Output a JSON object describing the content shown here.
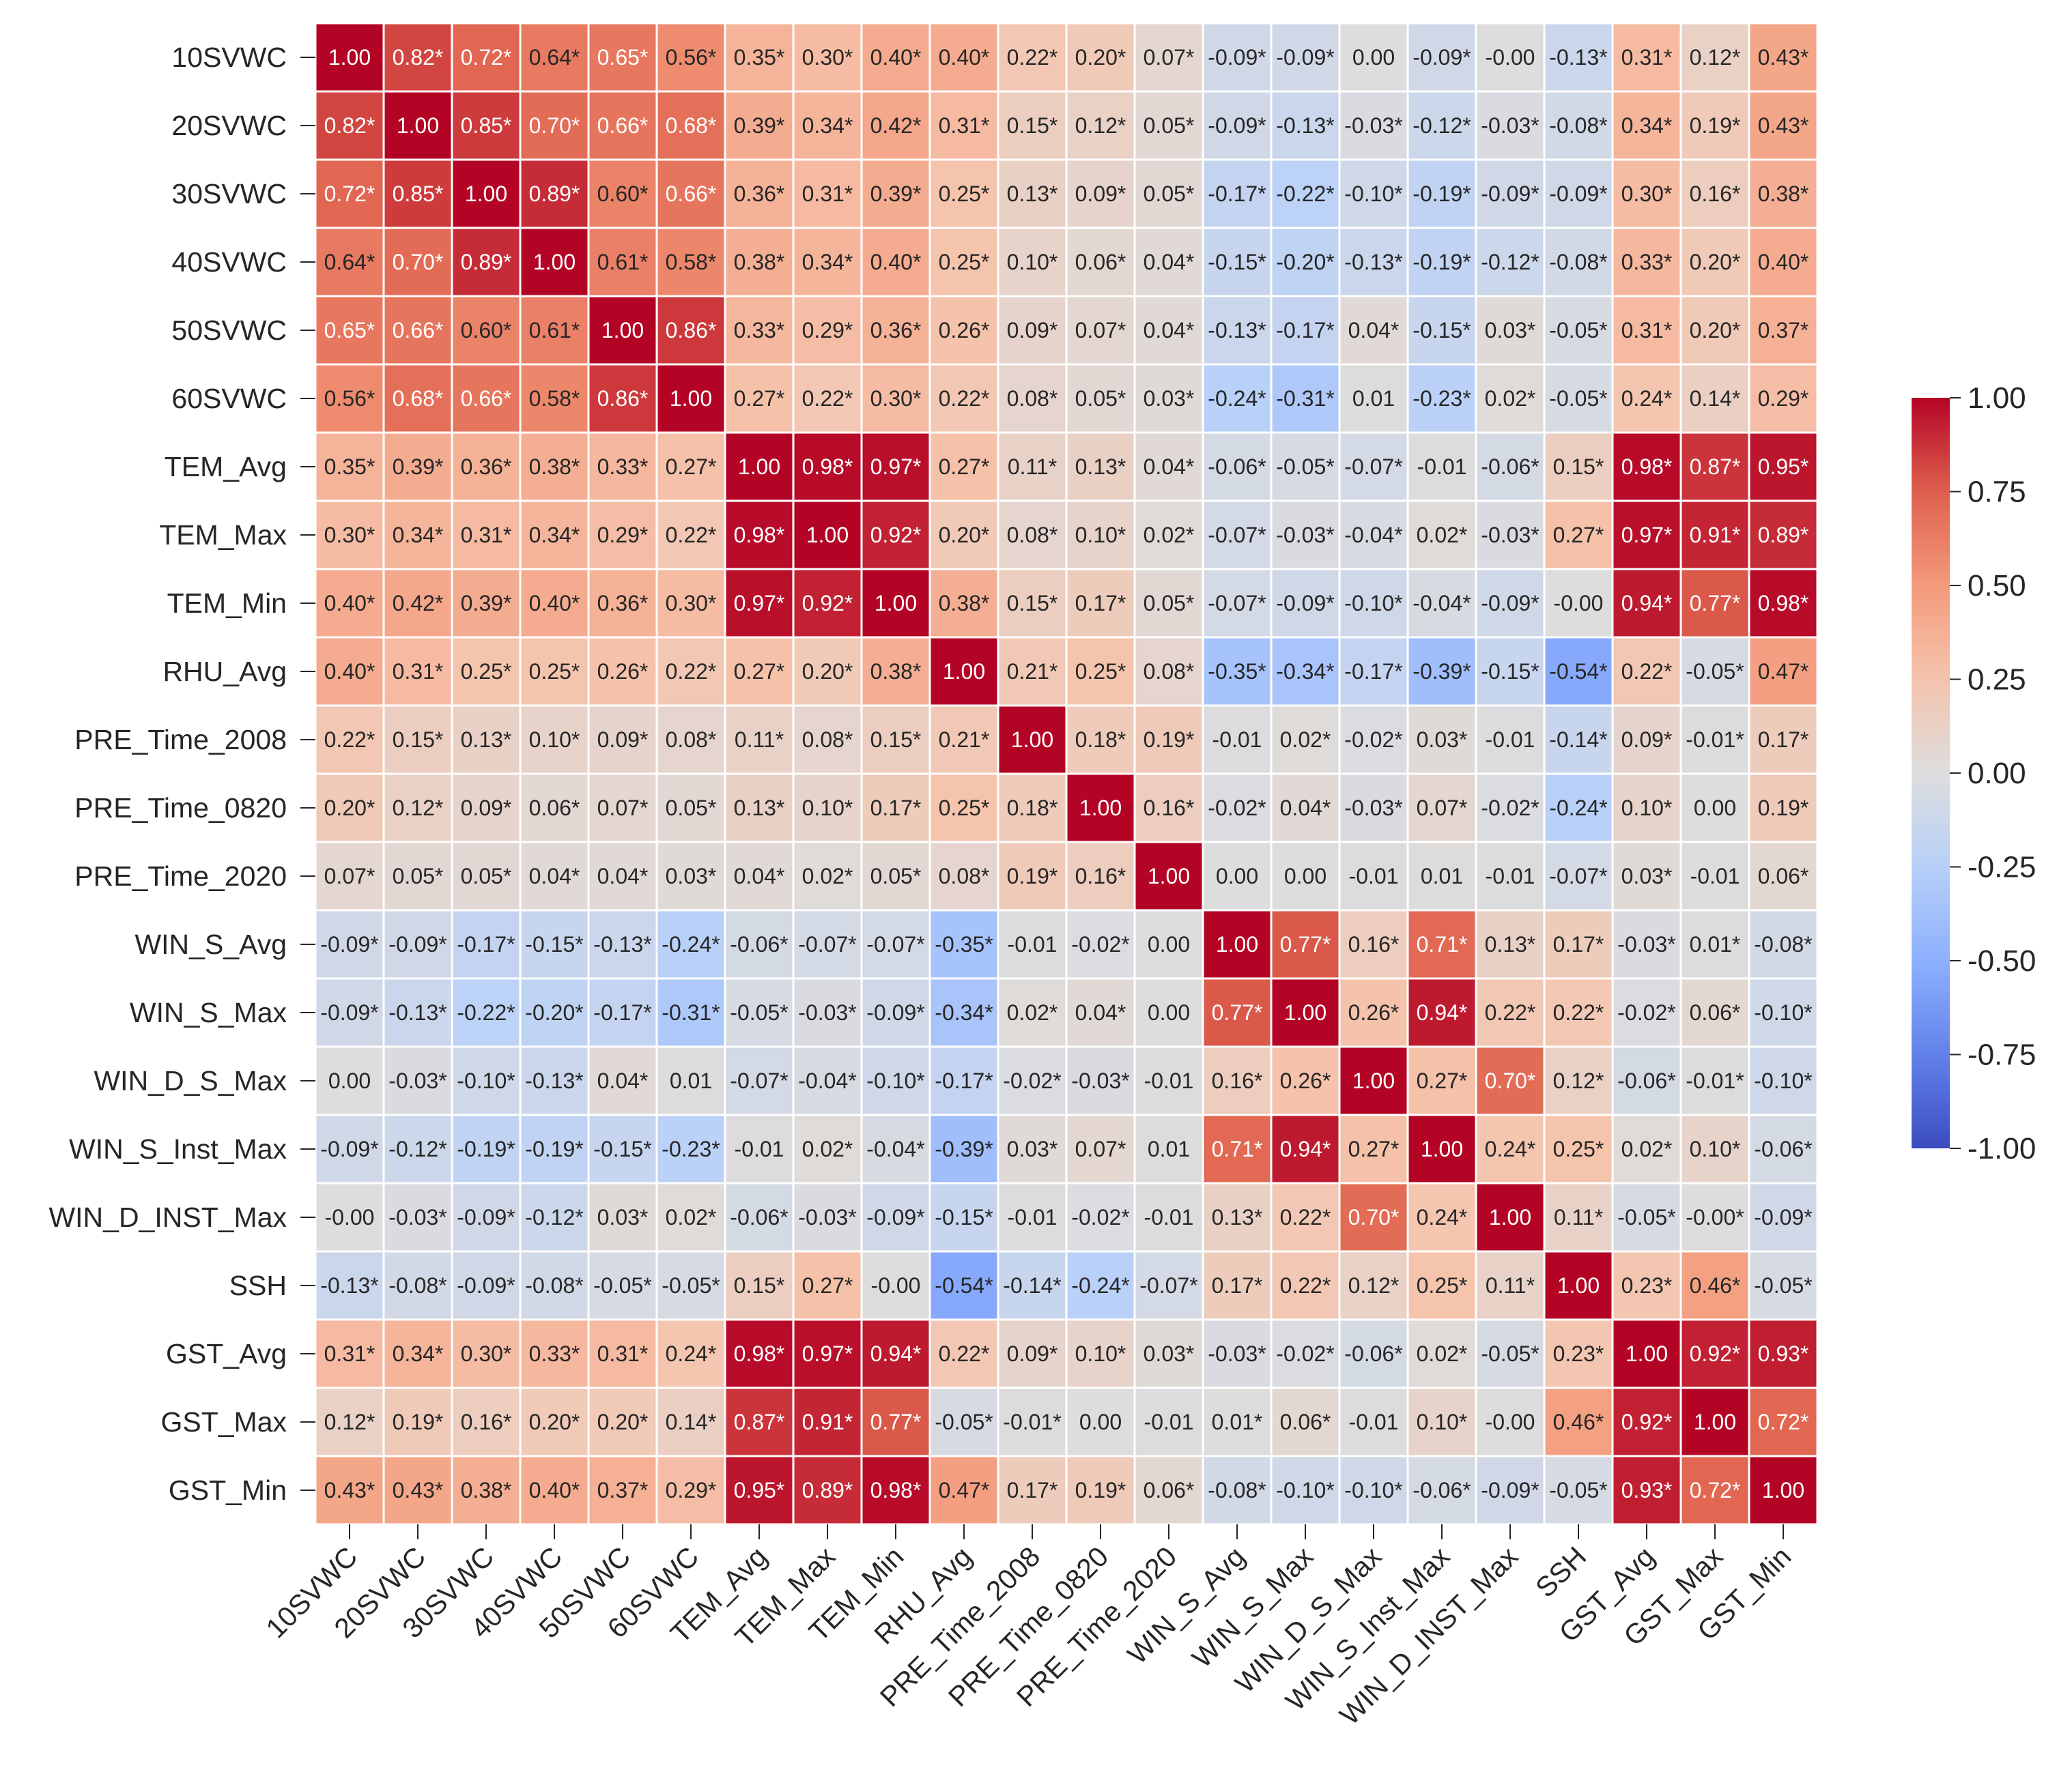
{
  "chart_data": {
    "type": "heatmap",
    "title": "",
    "xlabel": "",
    "ylabel": "",
    "variables": [
      "10SVWC",
      "20SVWC",
      "30SVWC",
      "40SVWC",
      "50SVWC",
      "60SVWC",
      "TEM_Avg",
      "TEM_Max",
      "TEM_Min",
      "RHU_Avg",
      "PRE_Time_2008",
      "PRE_Time_0820",
      "PRE_Time_2020",
      "WIN_S_Avg",
      "WIN_S_Max",
      "WIN_D_S_Max",
      "WIN_S_Inst_Max",
      "WIN_D_INST_Max",
      "SSH",
      "GST_Avg",
      "GST_Max",
      "GST_Min"
    ],
    "labels": [
      [
        "1.00",
        "0.82*",
        "0.72*",
        "0.64*",
        "0.65*",
        "0.56*",
        "0.35*",
        "0.30*",
        "0.40*",
        "0.40*",
        "0.22*",
        "0.20*",
        "0.07*",
        "-0.09*",
        "-0.09*",
        "0.00",
        "-0.09*",
        "-0.00",
        "-0.13*",
        "0.31*",
        "0.12*",
        "0.43*"
      ],
      [
        "0.82*",
        "1.00",
        "0.85*",
        "0.70*",
        "0.66*",
        "0.68*",
        "0.39*",
        "0.34*",
        "0.42*",
        "0.31*",
        "0.15*",
        "0.12*",
        "0.05*",
        "-0.09*",
        "-0.13*",
        "-0.03*",
        "-0.12*",
        "-0.03*",
        "-0.08*",
        "0.34*",
        "0.19*",
        "0.43*"
      ],
      [
        "0.72*",
        "0.85*",
        "1.00",
        "0.89*",
        "0.60*",
        "0.66*",
        "0.36*",
        "0.31*",
        "0.39*",
        "0.25*",
        "0.13*",
        "0.09*",
        "0.05*",
        "-0.17*",
        "-0.22*",
        "-0.10*",
        "-0.19*",
        "-0.09*",
        "-0.09*",
        "0.30*",
        "0.16*",
        "0.38*"
      ],
      [
        "0.64*",
        "0.70*",
        "0.89*",
        "1.00",
        "0.61*",
        "0.58*",
        "0.38*",
        "0.34*",
        "0.40*",
        "0.25*",
        "0.10*",
        "0.06*",
        "0.04*",
        "-0.15*",
        "-0.20*",
        "-0.13*",
        "-0.19*",
        "-0.12*",
        "-0.08*",
        "0.33*",
        "0.20*",
        "0.40*"
      ],
      [
        "0.65*",
        "0.66*",
        "0.60*",
        "0.61*",
        "1.00",
        "0.86*",
        "0.33*",
        "0.29*",
        "0.36*",
        "0.26*",
        "0.09*",
        "0.07*",
        "0.04*",
        "-0.13*",
        "-0.17*",
        "0.04*",
        "-0.15*",
        "0.03*",
        "-0.05*",
        "0.31*",
        "0.20*",
        "0.37*"
      ],
      [
        "0.56*",
        "0.68*",
        "0.66*",
        "0.58*",
        "0.86*",
        "1.00",
        "0.27*",
        "0.22*",
        "0.30*",
        "0.22*",
        "0.08*",
        "0.05*",
        "0.03*",
        "-0.24*",
        "-0.31*",
        "0.01",
        "-0.23*",
        "0.02*",
        "-0.05*",
        "0.24*",
        "0.14*",
        "0.29*"
      ],
      [
        "0.35*",
        "0.39*",
        "0.36*",
        "0.38*",
        "0.33*",
        "0.27*",
        "1.00",
        "0.98*",
        "0.97*",
        "0.27*",
        "0.11*",
        "0.13*",
        "0.04*",
        "-0.06*",
        "-0.05*",
        "-0.07*",
        "-0.01",
        "-0.06*",
        "0.15*",
        "0.98*",
        "0.87*",
        "0.95*"
      ],
      [
        "0.30*",
        "0.34*",
        "0.31*",
        "0.34*",
        "0.29*",
        "0.22*",
        "0.98*",
        "1.00",
        "0.92*",
        "0.20*",
        "0.08*",
        "0.10*",
        "0.02*",
        "-0.07*",
        "-0.03*",
        "-0.04*",
        "0.02*",
        "-0.03*",
        "0.27*",
        "0.97*",
        "0.91*",
        "0.89*"
      ],
      [
        "0.40*",
        "0.42*",
        "0.39*",
        "0.40*",
        "0.36*",
        "0.30*",
        "0.97*",
        "0.92*",
        "1.00",
        "0.38*",
        "0.15*",
        "0.17*",
        "0.05*",
        "-0.07*",
        "-0.09*",
        "-0.10*",
        "-0.04*",
        "-0.09*",
        "-0.00",
        "0.94*",
        "0.77*",
        "0.98*"
      ],
      [
        "0.40*",
        "0.31*",
        "0.25*",
        "0.25*",
        "0.26*",
        "0.22*",
        "0.27*",
        "0.20*",
        "0.38*",
        "1.00",
        "0.21*",
        "0.25*",
        "0.08*",
        "-0.35*",
        "-0.34*",
        "-0.17*",
        "-0.39*",
        "-0.15*",
        "-0.54*",
        "0.22*",
        "-0.05*",
        "0.47*"
      ],
      [
        "0.22*",
        "0.15*",
        "0.13*",
        "0.10*",
        "0.09*",
        "0.08*",
        "0.11*",
        "0.08*",
        "0.15*",
        "0.21*",
        "1.00",
        "0.18*",
        "0.19*",
        "-0.01",
        "0.02*",
        "-0.02*",
        "0.03*",
        "-0.01",
        "-0.14*",
        "0.09*",
        "-0.01*",
        "0.17*"
      ],
      [
        "0.20*",
        "0.12*",
        "0.09*",
        "0.06*",
        "0.07*",
        "0.05*",
        "0.13*",
        "0.10*",
        "0.17*",
        "0.25*",
        "0.18*",
        "1.00",
        "0.16*",
        "-0.02*",
        "0.04*",
        "-0.03*",
        "0.07*",
        "-0.02*",
        "-0.24*",
        "0.10*",
        "0.00",
        "0.19*"
      ],
      [
        "0.07*",
        "0.05*",
        "0.05*",
        "0.04*",
        "0.04*",
        "0.03*",
        "0.04*",
        "0.02*",
        "0.05*",
        "0.08*",
        "0.19*",
        "0.16*",
        "1.00",
        "0.00",
        "0.00",
        "-0.01",
        "0.01",
        "-0.01",
        "-0.07*",
        "0.03*",
        "-0.01",
        "0.06*"
      ],
      [
        "-0.09*",
        "-0.09*",
        "-0.17*",
        "-0.15*",
        "-0.13*",
        "-0.24*",
        "-0.06*",
        "-0.07*",
        "-0.07*",
        "-0.35*",
        "-0.01",
        "-0.02*",
        "0.00",
        "1.00",
        "0.77*",
        "0.16*",
        "0.71*",
        "0.13*",
        "0.17*",
        "-0.03*",
        "0.01*",
        "-0.08*"
      ],
      [
        "-0.09*",
        "-0.13*",
        "-0.22*",
        "-0.20*",
        "-0.17*",
        "-0.31*",
        "-0.05*",
        "-0.03*",
        "-0.09*",
        "-0.34*",
        "0.02*",
        "0.04*",
        "0.00",
        "0.77*",
        "1.00",
        "0.26*",
        "0.94*",
        "0.22*",
        "0.22*",
        "-0.02*",
        "0.06*",
        "-0.10*"
      ],
      [
        "0.00",
        "-0.03*",
        "-0.10*",
        "-0.13*",
        "0.04*",
        "0.01",
        "-0.07*",
        "-0.04*",
        "-0.10*",
        "-0.17*",
        "-0.02*",
        "-0.03*",
        "-0.01",
        "0.16*",
        "0.26*",
        "1.00",
        "0.27*",
        "0.70*",
        "0.12*",
        "-0.06*",
        "-0.01*",
        "-0.10*"
      ],
      [
        "-0.09*",
        "-0.12*",
        "-0.19*",
        "-0.19*",
        "-0.15*",
        "-0.23*",
        "-0.01",
        "0.02*",
        "-0.04*",
        "-0.39*",
        "0.03*",
        "0.07*",
        "0.01",
        "0.71*",
        "0.94*",
        "0.27*",
        "1.00",
        "0.24*",
        "0.25*",
        "0.02*",
        "0.10*",
        "-0.06*"
      ],
      [
        "-0.00",
        "-0.03*",
        "-0.09*",
        "-0.12*",
        "0.03*",
        "0.02*",
        "-0.06*",
        "-0.03*",
        "-0.09*",
        "-0.15*",
        "-0.01",
        "-0.02*",
        "-0.01",
        "0.13*",
        "0.22*",
        "0.70*",
        "0.24*",
        "1.00",
        "0.11*",
        "-0.05*",
        "-0.00*",
        "-0.09*"
      ],
      [
        "-0.13*",
        "-0.08*",
        "-0.09*",
        "-0.08*",
        "-0.05*",
        "-0.05*",
        "0.15*",
        "0.27*",
        "-0.00",
        "-0.54*",
        "-0.14*",
        "-0.24*",
        "-0.07*",
        "0.17*",
        "0.22*",
        "0.12*",
        "0.25*",
        "0.11*",
        "1.00",
        "0.23*",
        "0.46*",
        "-0.05*"
      ],
      [
        "0.31*",
        "0.34*",
        "0.30*",
        "0.33*",
        "0.31*",
        "0.24*",
        "0.98*",
        "0.97*",
        "0.94*",
        "0.22*",
        "0.09*",
        "0.10*",
        "0.03*",
        "-0.03*",
        "-0.02*",
        "-0.06*",
        "0.02*",
        "-0.05*",
        "0.23*",
        "1.00",
        "0.92*",
        "0.93*"
      ],
      [
        "0.12*",
        "0.19*",
        "0.16*",
        "0.20*",
        "0.20*",
        "0.14*",
        "0.87*",
        "0.91*",
        "0.77*",
        "-0.05*",
        "-0.01*",
        "0.00",
        "-0.01",
        "0.01*",
        "0.06*",
        "-0.01",
        "0.10*",
        "-0.00",
        "0.46*",
        "0.92*",
        "1.00",
        "0.72*"
      ],
      [
        "0.43*",
        "0.43*",
        "0.38*",
        "0.40*",
        "0.37*",
        "0.29*",
        "0.95*",
        "0.89*",
        "0.98*",
        "0.47*",
        "0.17*",
        "0.19*",
        "0.06*",
        "-0.08*",
        "-0.10*",
        "-0.10*",
        "-0.06*",
        "-0.09*",
        "-0.05*",
        "0.93*",
        "0.72*",
        "1.00"
      ]
    ],
    "vmin": -1.0,
    "vmax": 1.0,
    "colormap": "coolwarm",
    "colorbar": {
      "ticks": [
        "1.00",
        "0.75",
        "0.50",
        "0.25",
        "0.00",
        "-0.25",
        "-0.50",
        "-0.75",
        "-1.00"
      ],
      "placement": "right"
    },
    "gridlines": "white"
  }
}
